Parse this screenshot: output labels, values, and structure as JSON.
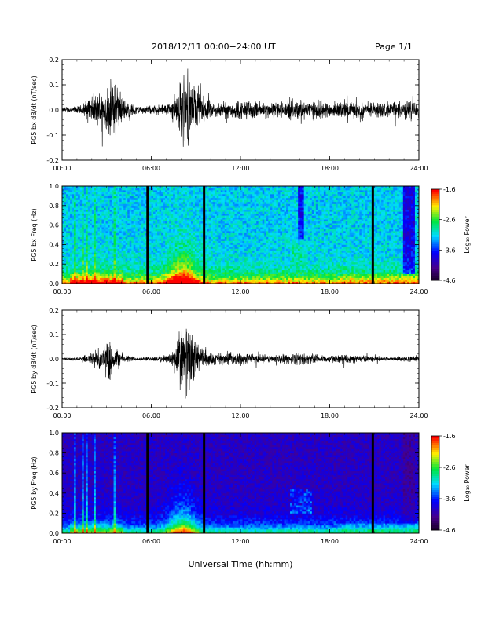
{
  "header": {
    "title": "2018/12/11  00:00−24:00 UT",
    "page": "Page 1/1"
  },
  "footer": {
    "xlabel": "Universal Time (hh:mm)"
  },
  "chart_data": [
    {
      "type": "line",
      "ylabel": "PG5 bx dB/dt (nT/sec)",
      "ylim": [
        -0.2,
        0.2
      ],
      "yticks": [
        "0.2",
        "0.1",
        "0.0",
        "-0.1",
        "-0.2"
      ],
      "xticks": [
        "00:00",
        "06:00",
        "12:00",
        "18:00",
        "24:00"
      ],
      "xlim_hours": [
        0,
        24
      ],
      "series": [
        {
          "values": "time series 00:00-24:00 UT; bursts near 01:45-04:15 (peak ~±0.15), 07:30-09:30 (peak ~0.19/-0.19), moderate activity 10:00-24:00 (~±0.05)",
          "envelope": [
            {
              "h": 0.0,
              "a": 0.01
            },
            {
              "h": 1.2,
              "a": 0.02
            },
            {
              "h": 1.8,
              "a": 0.06
            },
            {
              "h": 2.3,
              "a": 0.08
            },
            {
              "h": 3.0,
              "a": 0.12
            },
            {
              "h": 3.5,
              "a": 0.15
            },
            {
              "h": 4.2,
              "a": 0.05
            },
            {
              "h": 5.0,
              "a": 0.02
            },
            {
              "h": 6.0,
              "a": 0.02
            },
            {
              "h": 7.0,
              "a": 0.03
            },
            {
              "h": 7.6,
              "a": 0.06
            },
            {
              "h": 8.2,
              "a": 0.19
            },
            {
              "h": 8.6,
              "a": 0.15
            },
            {
              "h": 9.3,
              "a": 0.08
            },
            {
              "h": 10.0,
              "a": 0.04
            },
            {
              "h": 11.0,
              "a": 0.04
            },
            {
              "h": 12.0,
              "a": 0.05
            },
            {
              "h": 14.0,
              "a": 0.04
            },
            {
              "h": 16.0,
              "a": 0.05
            },
            {
              "h": 18.0,
              "a": 0.04
            },
            {
              "h": 20.0,
              "a": 0.04
            },
            {
              "h": 22.0,
              "a": 0.04
            },
            {
              "h": 24.0,
              "a": 0.05
            }
          ]
        }
      ]
    },
    {
      "type": "heatmap",
      "ylabel": "PG5 bx Freq (Hz)",
      "ylim": [
        0.0,
        1.0
      ],
      "yticks": [
        "1.0",
        "0.8",
        "0.6",
        "0.4",
        "0.2",
        "0.0"
      ],
      "xticks": [
        "00:00",
        "06:00",
        "12:00",
        "18:00",
        "24:00"
      ],
      "xlim_hours": [
        0,
        24
      ],
      "colorbar": {
        "label": "Log₁₀ Power",
        "ticks": [
          "-1.6",
          "-2.6",
          "-3.6",
          "-4.6"
        ],
        "range": [
          -4.6,
          -1.6
        ]
      },
      "data_gaps_hours": [
        5.75,
        9.55,
        20.9
      ],
      "background": "cyan",
      "power_notes": "enhanced power below 0.1 Hz, strongest near 08:00; broadband striations 00:30-04:00; dark band near 16:00 and 23:00-23:40"
    },
    {
      "type": "line",
      "ylabel": "PG5 by dB/dt (nT/sec)",
      "ylim": [
        -0.2,
        0.2
      ],
      "yticks": [
        "0.2",
        "0.1",
        "0.0",
        "-0.1",
        "-0.2"
      ],
      "xticks": [
        "00:00",
        "06:00",
        "12:00",
        "18:00",
        "24:00"
      ],
      "xlim_hours": [
        0,
        24
      ],
      "series": [
        {
          "values": "time series 00:00-24:00 UT; bursts near 02:00-04:00 (peak ~±0.12), 07:30-09:30 (peak ~0.19/-0.19), moderate activity 10:00-24:00 (~±0.04)",
          "envelope": [
            {
              "h": 0.0,
              "a": 0.005
            },
            {
              "h": 1.2,
              "a": 0.01
            },
            {
              "h": 1.8,
              "a": 0.03
            },
            {
              "h": 2.5,
              "a": 0.06
            },
            {
              "h": 3.2,
              "a": 0.1
            },
            {
              "h": 3.6,
              "a": 0.06
            },
            {
              "h": 4.2,
              "a": 0.02
            },
            {
              "h": 5.0,
              "a": 0.01
            },
            {
              "h": 6.0,
              "a": 0.01
            },
            {
              "h": 7.0,
              "a": 0.02
            },
            {
              "h": 7.6,
              "a": 0.06
            },
            {
              "h": 8.0,
              "a": 0.19
            },
            {
              "h": 8.5,
              "a": 0.17
            },
            {
              "h": 9.3,
              "a": 0.06
            },
            {
              "h": 10.0,
              "a": 0.03
            },
            {
              "h": 11.0,
              "a": 0.03
            },
            {
              "h": 12.0,
              "a": 0.03
            },
            {
              "h": 14.0,
              "a": 0.02
            },
            {
              "h": 16.0,
              "a": 0.03
            },
            {
              "h": 18.0,
              "a": 0.02
            },
            {
              "h": 20.0,
              "a": 0.02
            },
            {
              "h": 22.0,
              "a": 0.01
            },
            {
              "h": 24.0,
              "a": 0.02
            }
          ]
        }
      ]
    },
    {
      "type": "heatmap",
      "ylabel": "PG5 by Freq (Hz)",
      "ylim": [
        0.0,
        1.0
      ],
      "yticks": [
        "1.0",
        "0.8",
        "0.6",
        "0.4",
        "0.2",
        "0.0"
      ],
      "xticks": [
        "00:00",
        "06:00",
        "12:00",
        "18:00",
        "24:00"
      ],
      "xlim_hours": [
        0,
        24
      ],
      "colorbar": {
        "label": "Log₁₀ Power",
        "ticks": [
          "-1.6",
          "-2.6",
          "-3.6",
          "-4.6"
        ],
        "range": [
          -4.6,
          -1.6
        ]
      },
      "data_gaps_hours": [
        5.75,
        9.55,
        20.9
      ],
      "background": "dark purple",
      "power_notes": "enhanced power below 0.15 Hz, strongest near 08:00; broadband striations 00:30-04:00; diffuse patch near 15:30-16:30 around 0.3 Hz"
    }
  ]
}
